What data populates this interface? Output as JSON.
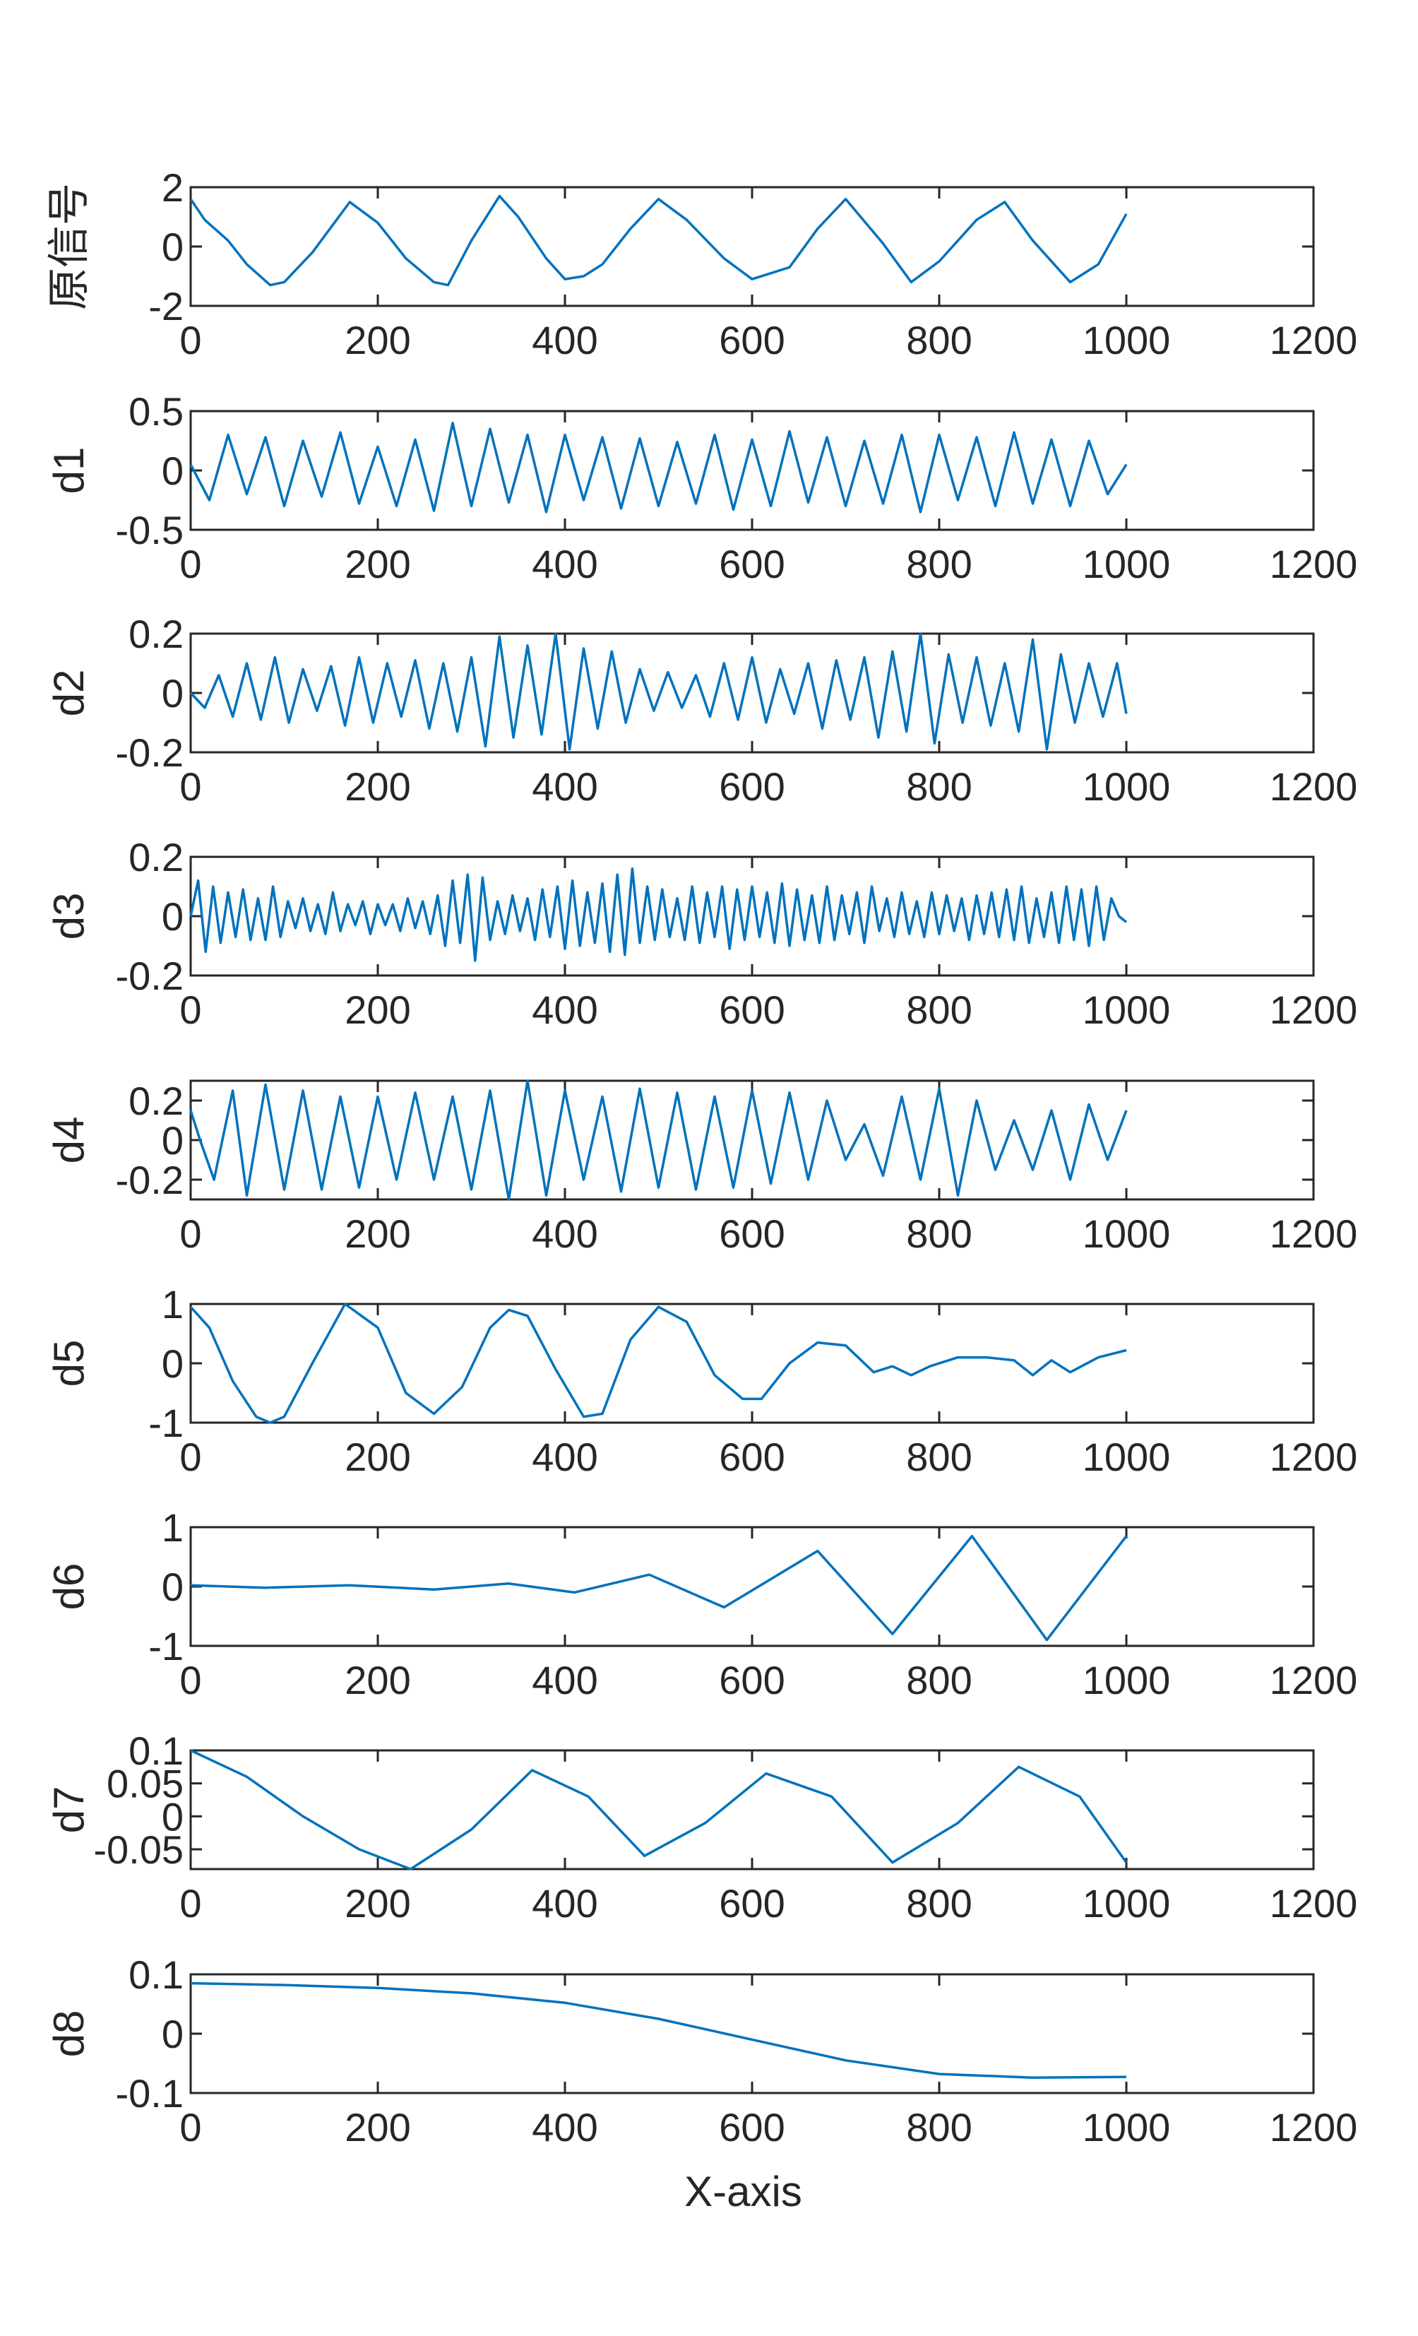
{
  "style": {
    "series_color": "#0072BD",
    "axis_color": "#262626",
    "background": "#ffffff"
  },
  "chart_data": [
    {
      "type": "line",
      "ylabel": "原信号",
      "xlabel": "",
      "xlim": [
        0,
        1200
      ],
      "ylim": [
        -2,
        2
      ],
      "xticks": [
        0,
        200,
        400,
        600,
        800,
        1000,
        1200
      ],
      "yticks": [
        -2,
        0,
        2
      ],
      "series": [
        {
          "x": [
            0,
            15,
            40,
            60,
            85,
            100,
            130,
            170,
            200,
            230,
            260,
            275,
            300,
            330,
            350,
            380,
            400,
            420,
            440,
            470,
            500,
            530,
            570,
            600,
            640,
            670,
            700,
            740,
            770,
            800,
            840,
            870,
            900,
            940,
            970,
            1000
          ],
          "y": [
            1.6,
            0.9,
            0.2,
            -0.6,
            -1.3,
            -1.2,
            -0.2,
            1.5,
            0.8,
            -0.4,
            -1.2,
            -1.3,
            0.2,
            1.7,
            1.0,
            -0.4,
            -1.1,
            -1.0,
            -0.6,
            0.6,
            1.6,
            0.9,
            -0.4,
            -1.1,
            -0.7,
            0.6,
            1.6,
            0.1,
            -1.2,
            -0.5,
            0.9,
            1.5,
            0.2,
            -1.2,
            -0.6,
            1.1
          ]
        }
      ]
    },
    {
      "type": "line",
      "ylabel": "d1",
      "xlabel": "",
      "xlim": [
        0,
        1200
      ],
      "ylim": [
        -0.5,
        0.5
      ],
      "xticks": [
        0,
        200,
        400,
        600,
        800,
        1000,
        1200
      ],
      "yticks": [
        -0.5,
        0,
        0.5
      ],
      "series": [
        {
          "x": [
            0,
            20,
            40,
            60,
            80,
            100,
            120,
            140,
            160,
            180,
            200,
            220,
            240,
            260,
            280,
            300,
            320,
            340,
            360,
            380,
            400,
            420,
            440,
            460,
            480,
            500,
            520,
            540,
            560,
            580,
            600,
            620,
            640,
            660,
            680,
            700,
            720,
            740,
            760,
            780,
            800,
            820,
            840,
            860,
            880,
            900,
            920,
            940,
            960,
            980,
            1000
          ],
          "y": [
            0.05,
            -0.25,
            0.3,
            -0.2,
            0.28,
            -0.3,
            0.25,
            -0.22,
            0.32,
            -0.28,
            0.2,
            -0.3,
            0.26,
            -0.34,
            0.4,
            -0.3,
            0.35,
            -0.27,
            0.3,
            -0.35,
            0.3,
            -0.25,
            0.28,
            -0.32,
            0.27,
            -0.3,
            0.24,
            -0.28,
            0.3,
            -0.33,
            0.26,
            -0.3,
            0.33,
            -0.27,
            0.28,
            -0.3,
            0.25,
            -0.28,
            0.3,
            -0.35,
            0.3,
            -0.25,
            0.28,
            -0.3,
            0.32,
            -0.28,
            0.26,
            -0.3,
            0.25,
            -0.2,
            0.05
          ]
        }
      ]
    },
    {
      "type": "line",
      "ylabel": "d2",
      "xlabel": "",
      "xlim": [
        0,
        1200
      ],
      "ylim": [
        -0.2,
        0.2
      ],
      "xticks": [
        0,
        200,
        400,
        600,
        800,
        1000,
        1200
      ],
      "yticks": [
        -0.2,
        0,
        0.2
      ],
      "series": [
        {
          "x": [
            0,
            15,
            30,
            45,
            60,
            75,
            90,
            105,
            120,
            135,
            150,
            165,
            180,
            195,
            210,
            225,
            240,
            255,
            270,
            285,
            300,
            315,
            330,
            345,
            360,
            375,
            390,
            405,
            420,
            435,
            450,
            465,
            480,
            495,
            510,
            525,
            540,
            555,
            570,
            585,
            600,
            615,
            630,
            645,
            660,
            675,
            690,
            705,
            720,
            735,
            750,
            765,
            780,
            795,
            810,
            825,
            840,
            855,
            870,
            885,
            900,
            915,
            930,
            945,
            960,
            975,
            990,
            1000
          ],
          "y": [
            0.0,
            -0.05,
            0.06,
            -0.08,
            0.1,
            -0.09,
            0.12,
            -0.1,
            0.08,
            -0.06,
            0.09,
            -0.11,
            0.12,
            -0.1,
            0.1,
            -0.08,
            0.11,
            -0.12,
            0.1,
            -0.13,
            0.12,
            -0.18,
            0.19,
            -0.15,
            0.16,
            -0.14,
            0.2,
            -0.19,
            0.15,
            -0.12,
            0.14,
            -0.1,
            0.08,
            -0.06,
            0.07,
            -0.05,
            0.06,
            -0.08,
            0.1,
            -0.09,
            0.12,
            -0.1,
            0.08,
            -0.07,
            0.1,
            -0.12,
            0.11,
            -0.09,
            0.12,
            -0.15,
            0.14,
            -0.13,
            0.2,
            -0.17,
            0.13,
            -0.1,
            0.12,
            -0.11,
            0.1,
            -0.13,
            0.18,
            -0.19,
            0.13,
            -0.1,
            0.1,
            -0.08,
            0.1,
            -0.07
          ]
        }
      ]
    },
    {
      "type": "line",
      "ylabel": "d3",
      "xlabel": "",
      "xlim": [
        0,
        1200
      ],
      "ylim": [
        -0.2,
        0.2
      ],
      "xticks": [
        0,
        200,
        400,
        600,
        800,
        1000,
        1200
      ],
      "yticks": [
        -0.2,
        0,
        0.2
      ],
      "series": [
        {
          "x": [
            0,
            8,
            16,
            24,
            32,
            40,
            48,
            56,
            64,
            72,
            80,
            88,
            96,
            104,
            112,
            120,
            128,
            136,
            144,
            152,
            160,
            168,
            176,
            184,
            192,
            200,
            208,
            216,
            224,
            232,
            240,
            248,
            256,
            264,
            272,
            280,
            288,
            296,
            304,
            312,
            320,
            328,
            336,
            344,
            352,
            360,
            368,
            376,
            384,
            392,
            400,
            408,
            416,
            424,
            432,
            440,
            448,
            456,
            464,
            472,
            480,
            488,
            496,
            504,
            512,
            520,
            528,
            536,
            544,
            552,
            560,
            568,
            576,
            584,
            592,
            600,
            608,
            616,
            624,
            632,
            640,
            648,
            656,
            664,
            672,
            680,
            688,
            696,
            704,
            712,
            720,
            728,
            736,
            744,
            752,
            760,
            768,
            776,
            784,
            792,
            800,
            808,
            816,
            824,
            832,
            840,
            848,
            856,
            864,
            872,
            880,
            888,
            896,
            904,
            912,
            920,
            928,
            936,
            944,
            952,
            960,
            968,
            976,
            984,
            992,
            1000
          ],
          "y": [
            0.0,
            0.12,
            -0.12,
            0.1,
            -0.09,
            0.08,
            -0.07,
            0.09,
            -0.08,
            0.06,
            -0.08,
            0.1,
            -0.07,
            0.05,
            -0.04,
            0.06,
            -0.05,
            0.04,
            -0.06,
            0.08,
            -0.05,
            0.04,
            -0.03,
            0.05,
            -0.06,
            0.04,
            -0.03,
            0.04,
            -0.05,
            0.06,
            -0.04,
            0.05,
            -0.06,
            0.07,
            -0.1,
            0.12,
            -0.09,
            0.14,
            -0.15,
            0.13,
            -0.08,
            0.05,
            -0.06,
            0.07,
            -0.05,
            0.06,
            -0.08,
            0.09,
            -0.07,
            0.1,
            -0.11,
            0.12,
            -0.1,
            0.08,
            -0.09,
            0.11,
            -0.12,
            0.14,
            -0.13,
            0.16,
            -0.09,
            0.1,
            -0.08,
            0.09,
            -0.07,
            0.06,
            -0.08,
            0.1,
            -0.09,
            0.08,
            -0.07,
            0.1,
            -0.11,
            0.09,
            -0.08,
            0.1,
            -0.07,
            0.08,
            -0.09,
            0.11,
            -0.1,
            0.09,
            -0.08,
            0.07,
            -0.09,
            0.1,
            -0.08,
            0.07,
            -0.06,
            0.08,
            -0.09,
            0.1,
            -0.05,
            0.06,
            -0.07,
            0.08,
            -0.06,
            0.05,
            -0.07,
            0.08,
            -0.06,
            0.07,
            -0.05,
            0.06,
            -0.08,
            0.07,
            -0.06,
            0.08,
            -0.07,
            0.09,
            -0.08,
            0.1,
            -0.09,
            0.06,
            -0.07,
            0.08,
            -0.09,
            0.1,
            -0.08,
            0.09,
            -0.1,
            0.1,
            -0.08,
            0.06,
            0.0,
            -0.02
          ]
        }
      ]
    },
    {
      "type": "line",
      "ylabel": "d4",
      "xlabel": "",
      "xlim": [
        0,
        1200
      ],
      "ylim": [
        -0.3,
        0.3
      ],
      "xticks": [
        0,
        200,
        400,
        600,
        800,
        1000,
        1200
      ],
      "yticks": [
        -0.2,
        0,
        0.2
      ],
      "series": [
        {
          "x": [
            0,
            10,
            25,
            45,
            60,
            80,
            100,
            120,
            140,
            160,
            180,
            200,
            220,
            240,
            260,
            280,
            300,
            320,
            340,
            360,
            380,
            400,
            420,
            440,
            460,
            480,
            500,
            520,
            540,
            560,
            580,
            600,
            620,
            640,
            660,
            680,
            700,
            720,
            740,
            760,
            780,
            800,
            820,
            840,
            860,
            880,
            900,
            920,
            940,
            960,
            980,
            1000
          ],
          "y": [
            0.15,
            0.0,
            -0.2,
            0.25,
            -0.28,
            0.28,
            -0.25,
            0.25,
            -0.25,
            0.22,
            -0.24,
            0.22,
            -0.2,
            0.24,
            -0.2,
            0.22,
            -0.25,
            0.25,
            -0.3,
            0.3,
            -0.28,
            0.25,
            -0.2,
            0.22,
            -0.26,
            0.26,
            -0.24,
            0.24,
            -0.25,
            0.22,
            -0.24,
            0.25,
            -0.22,
            0.24,
            -0.2,
            0.2,
            -0.1,
            0.08,
            -0.18,
            0.22,
            -0.2,
            0.26,
            -0.28,
            0.2,
            -0.15,
            0.1,
            -0.15,
            0.15,
            -0.2,
            0.18,
            -0.1,
            0.15
          ]
        }
      ]
    },
    {
      "type": "line",
      "ylabel": "d5",
      "xlabel": "",
      "xlim": [
        0,
        1200
      ],
      "ylim": [
        -1,
        1
      ],
      "xticks": [
        0,
        200,
        400,
        600,
        800,
        1000,
        1200
      ],
      "yticks": [
        -1,
        0,
        1
      ],
      "series": [
        {
          "x": [
            0,
            20,
            45,
            70,
            85,
            100,
            130,
            165,
            200,
            230,
            260,
            290,
            320,
            340,
            360,
            390,
            420,
            440,
            470,
            500,
            530,
            560,
            590,
            610,
            640,
            670,
            700,
            730,
            750,
            770,
            790,
            820,
            850,
            880,
            900,
            920,
            940,
            970,
            1000
          ],
          "y": [
            0.95,
            0.6,
            -0.3,
            -0.9,
            -1.0,
            -0.9,
            0.0,
            1.05,
            0.6,
            -0.5,
            -0.85,
            -0.4,
            0.6,
            0.9,
            0.8,
            -0.1,
            -0.9,
            -0.85,
            0.4,
            0.95,
            0.7,
            -0.2,
            -0.6,
            -0.6,
            0.0,
            0.35,
            0.3,
            -0.15,
            -0.05,
            -0.2,
            -0.05,
            0.1,
            0.1,
            0.05,
            -0.2,
            0.05,
            -0.15,
            0.1,
            0.22
          ]
        }
      ]
    },
    {
      "type": "line",
      "ylabel": "d6",
      "xlabel": "",
      "xlim": [
        0,
        1200
      ],
      "ylim": [
        -1,
        1
      ],
      "xticks": [
        0,
        200,
        400,
        600,
        800,
        1000,
        1200
      ],
      "yticks": [
        -1,
        0,
        1
      ],
      "series": [
        {
          "x": [
            0,
            80,
            170,
            260,
            340,
            410,
            490,
            570,
            670,
            750,
            835,
            915,
            1000
          ],
          "y": [
            0.02,
            -0.02,
            0.02,
            -0.05,
            0.05,
            -0.1,
            0.2,
            -0.35,
            0.6,
            -0.8,
            0.85,
            -0.9,
            0.85
          ]
        }
      ]
    },
    {
      "type": "line",
      "ylabel": "d7",
      "xlabel": "",
      "xlim": [
        0,
        1200
      ],
      "ylim": [
        -0.08,
        0.1
      ],
      "xticks": [
        0,
        200,
        400,
        600,
        800,
        1000,
        1200
      ],
      "yticks": [
        -0.05,
        0,
        0.05,
        0.1
      ],
      "series": [
        {
          "x": [
            0,
            60,
            120,
            180,
            235,
            300,
            365,
            425,
            485,
            550,
            615,
            685,
            750,
            820,
            885,
            950,
            1000
          ],
          "y": [
            0.1,
            0.06,
            0.0,
            -0.05,
            -0.08,
            -0.02,
            0.07,
            0.03,
            -0.06,
            -0.01,
            0.065,
            0.03,
            -0.07,
            -0.01,
            0.075,
            0.03,
            -0.07
          ]
        }
      ]
    },
    {
      "type": "line",
      "ylabel": "d8",
      "xlabel": "X-axis",
      "xlim": [
        0,
        1200
      ],
      "ylim": [
        -0.1,
        0.1
      ],
      "xticks": [
        0,
        200,
        400,
        600,
        800,
        1000,
        1200
      ],
      "yticks": [
        -0.1,
        0,
        0.1
      ],
      "series": [
        {
          "x": [
            0,
            100,
            200,
            300,
            400,
            500,
            600,
            700,
            800,
            900,
            1000
          ],
          "y": [
            0.085,
            0.082,
            0.077,
            0.068,
            0.052,
            0.025,
            -0.01,
            -0.045,
            -0.068,
            -0.074,
            -0.073
          ]
        }
      ]
    }
  ]
}
